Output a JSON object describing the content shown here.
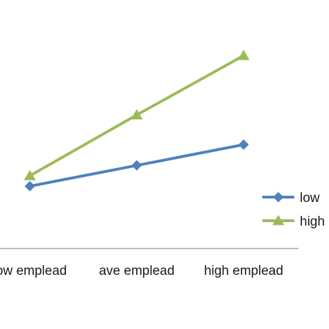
{
  "chart_data": {
    "type": "line",
    "categories": [
      "low emplead",
      "ave emplead",
      "high emplead"
    ],
    "series": [
      {
        "name": "low",
        "values": [
          2.1,
          2.8,
          3.5
        ],
        "color": "#4f81bd",
        "marker": "diamond"
      },
      {
        "name": "high",
        "values": [
          2.45,
          4.5,
          6.5
        ],
        "color": "#9bbb59",
        "marker": "triangle"
      }
    ],
    "title": "",
    "xlabel": "",
    "ylabel": "",
    "ylim": [
      0,
      8
    ],
    "grid": false,
    "legend": "right",
    "axis_color": "#a6a6a6"
  }
}
